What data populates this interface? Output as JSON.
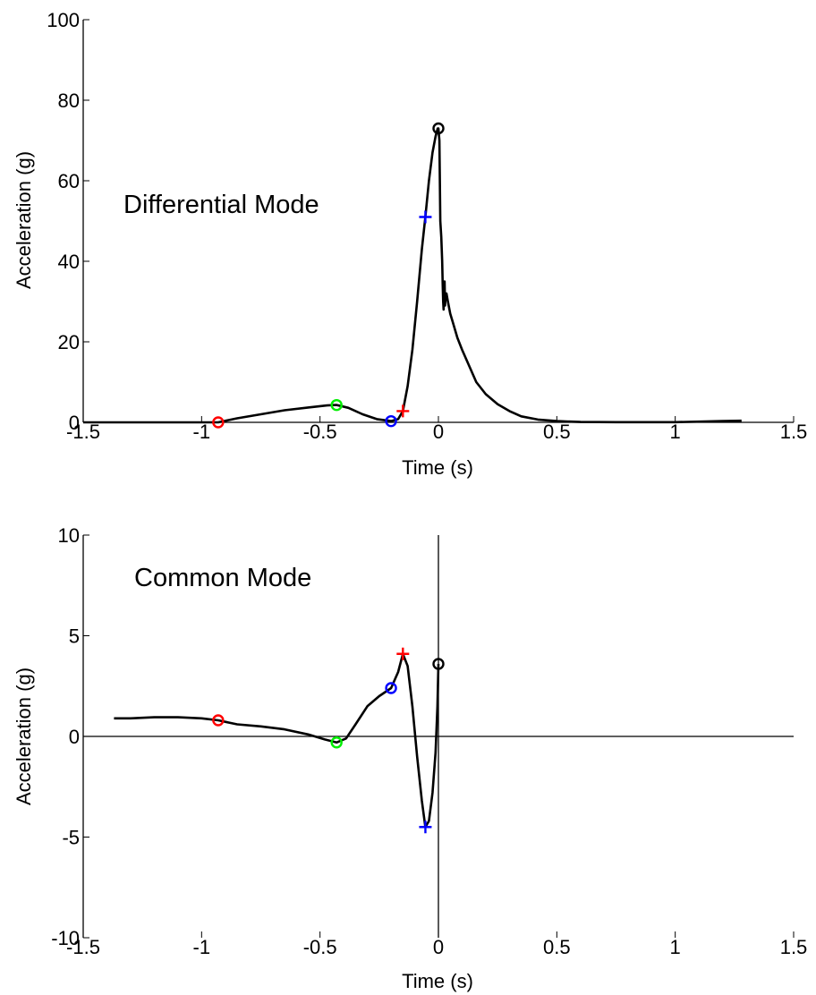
{
  "chart_data": [
    {
      "type": "line",
      "annotation": "Differential Mode",
      "xlabel": "Time (s)",
      "ylabel": "Acceleration (g)",
      "xlim": [
        -1.5,
        1.5
      ],
      "ylim": [
        0,
        100
      ],
      "xticks": [
        -1.5,
        -1,
        -0.5,
        0,
        0.5,
        1,
        1.5
      ],
      "xtick_labels": [
        "-1.5",
        "-1",
        "-0.5",
        "0",
        "0.5",
        "1",
        "1.5"
      ],
      "yticks": [
        0,
        20,
        40,
        60,
        80,
        100
      ],
      "ytick_labels": [
        "0",
        "20",
        "40",
        "60",
        "80",
        "100"
      ],
      "zero_lines": {
        "horizontal": true,
        "vertical": false
      },
      "series": [
        {
          "color": "#000000",
          "x": [
            -1.5,
            -0.93,
            -0.85,
            -0.75,
            -0.65,
            -0.55,
            -0.47,
            -0.43,
            -0.38,
            -0.32,
            -0.26,
            -0.2,
            -0.17,
            -0.15,
            -0.13,
            -0.11,
            -0.09,
            -0.07,
            -0.055,
            -0.04,
            -0.025,
            -0.012,
            -0.003,
            0.0,
            0.004,
            0.008,
            0.012,
            0.016,
            0.018,
            0.02,
            0.022,
            0.024,
            0.026,
            0.028,
            0.03,
            0.034,
            0.04,
            0.05,
            0.06,
            0.08,
            0.1,
            0.13,
            0.16,
            0.2,
            0.25,
            0.3,
            0.35,
            0.42,
            0.5,
            0.6,
            0.75,
            1.0,
            1.2,
            1.28
          ],
          "y": [
            0,
            0,
            1.0,
            2.0,
            3.0,
            3.7,
            4.2,
            4.3,
            3.6,
            2.0,
            0.8,
            0.3,
            0.8,
            2.8,
            9,
            18,
            30,
            43,
            51,
            60,
            67,
            71,
            73,
            73,
            70,
            50,
            46,
            40,
            34,
            30,
            28,
            33,
            35,
            29,
            31,
            32,
            30,
            27,
            25,
            21,
            18,
            14,
            10,
            7,
            4.5,
            2.8,
            1.5,
            0.7,
            0.3,
            0.1,
            0.05,
            0.05,
            0.3,
            0.4
          ]
        }
      ],
      "markers": [
        {
          "x": -0.93,
          "y": 0.0,
          "shape": "circle",
          "color": "#ff0000"
        },
        {
          "x": -0.43,
          "y": 4.3,
          "shape": "circle",
          "color": "#00ee00"
        },
        {
          "x": -0.2,
          "y": 0.3,
          "shape": "circle",
          "color": "#0000ff"
        },
        {
          "x": -0.15,
          "y": 2.8,
          "shape": "plus",
          "color": "#ff0000"
        },
        {
          "x": -0.055,
          "y": 51,
          "shape": "plus",
          "color": "#0000ff"
        },
        {
          "x": 0.0,
          "y": 73,
          "shape": "circle",
          "color": "#000000"
        }
      ]
    },
    {
      "type": "line",
      "annotation": "Common Mode",
      "xlabel": "Time (s)",
      "ylabel": "Acceleration (g)",
      "xlim": [
        -1.5,
        1.5
      ],
      "ylim": [
        -10,
        10
      ],
      "xticks": [
        -1.5,
        -1,
        -0.5,
        0,
        0.5,
        1,
        1.5
      ],
      "xtick_labels": [
        "-1.5",
        "-1",
        "-0.5",
        "0",
        "0.5",
        "1",
        "1.5"
      ],
      "yticks": [
        -10,
        -5,
        0,
        5,
        10
      ],
      "ytick_labels": [
        "-10",
        "-5",
        "0",
        "5",
        "10"
      ],
      "zero_lines": {
        "horizontal": true,
        "vertical": true
      },
      "series": [
        {
          "color": "#000000",
          "x": [
            -1.37,
            -1.3,
            -1.2,
            -1.1,
            -1.0,
            -0.93,
            -0.85,
            -0.75,
            -0.65,
            -0.55,
            -0.48,
            -0.43,
            -0.39,
            -0.35,
            -0.3,
            -0.25,
            -0.2,
            -0.17,
            -0.15,
            -0.13,
            -0.11,
            -0.09,
            -0.07,
            -0.055,
            -0.04,
            -0.025,
            -0.012,
            -0.004,
            0.0
          ],
          "y": [
            0.9,
            0.9,
            0.95,
            0.95,
            0.9,
            0.8,
            0.6,
            0.5,
            0.35,
            0.1,
            -0.15,
            -0.3,
            -0.1,
            0.6,
            1.5,
            2.0,
            2.4,
            3.2,
            4.1,
            3.5,
            1.5,
            -1.0,
            -3.2,
            -4.5,
            -4.2,
            -2.8,
            -0.8,
            1.5,
            3.6
          ]
        }
      ],
      "markers": [
        {
          "x": -0.93,
          "y": 0.8,
          "shape": "circle",
          "color": "#ff0000"
        },
        {
          "x": -0.43,
          "y": -0.3,
          "shape": "circle",
          "color": "#00ee00"
        },
        {
          "x": -0.2,
          "y": 2.4,
          "shape": "circle",
          "color": "#0000ff"
        },
        {
          "x": -0.15,
          "y": 4.1,
          "shape": "plus",
          "color": "#ff0000"
        },
        {
          "x": -0.055,
          "y": -4.5,
          "shape": "plus",
          "color": "#0000ff"
        },
        {
          "x": 0.0,
          "y": 3.6,
          "shape": "circle",
          "color": "#000000"
        }
      ]
    }
  ]
}
